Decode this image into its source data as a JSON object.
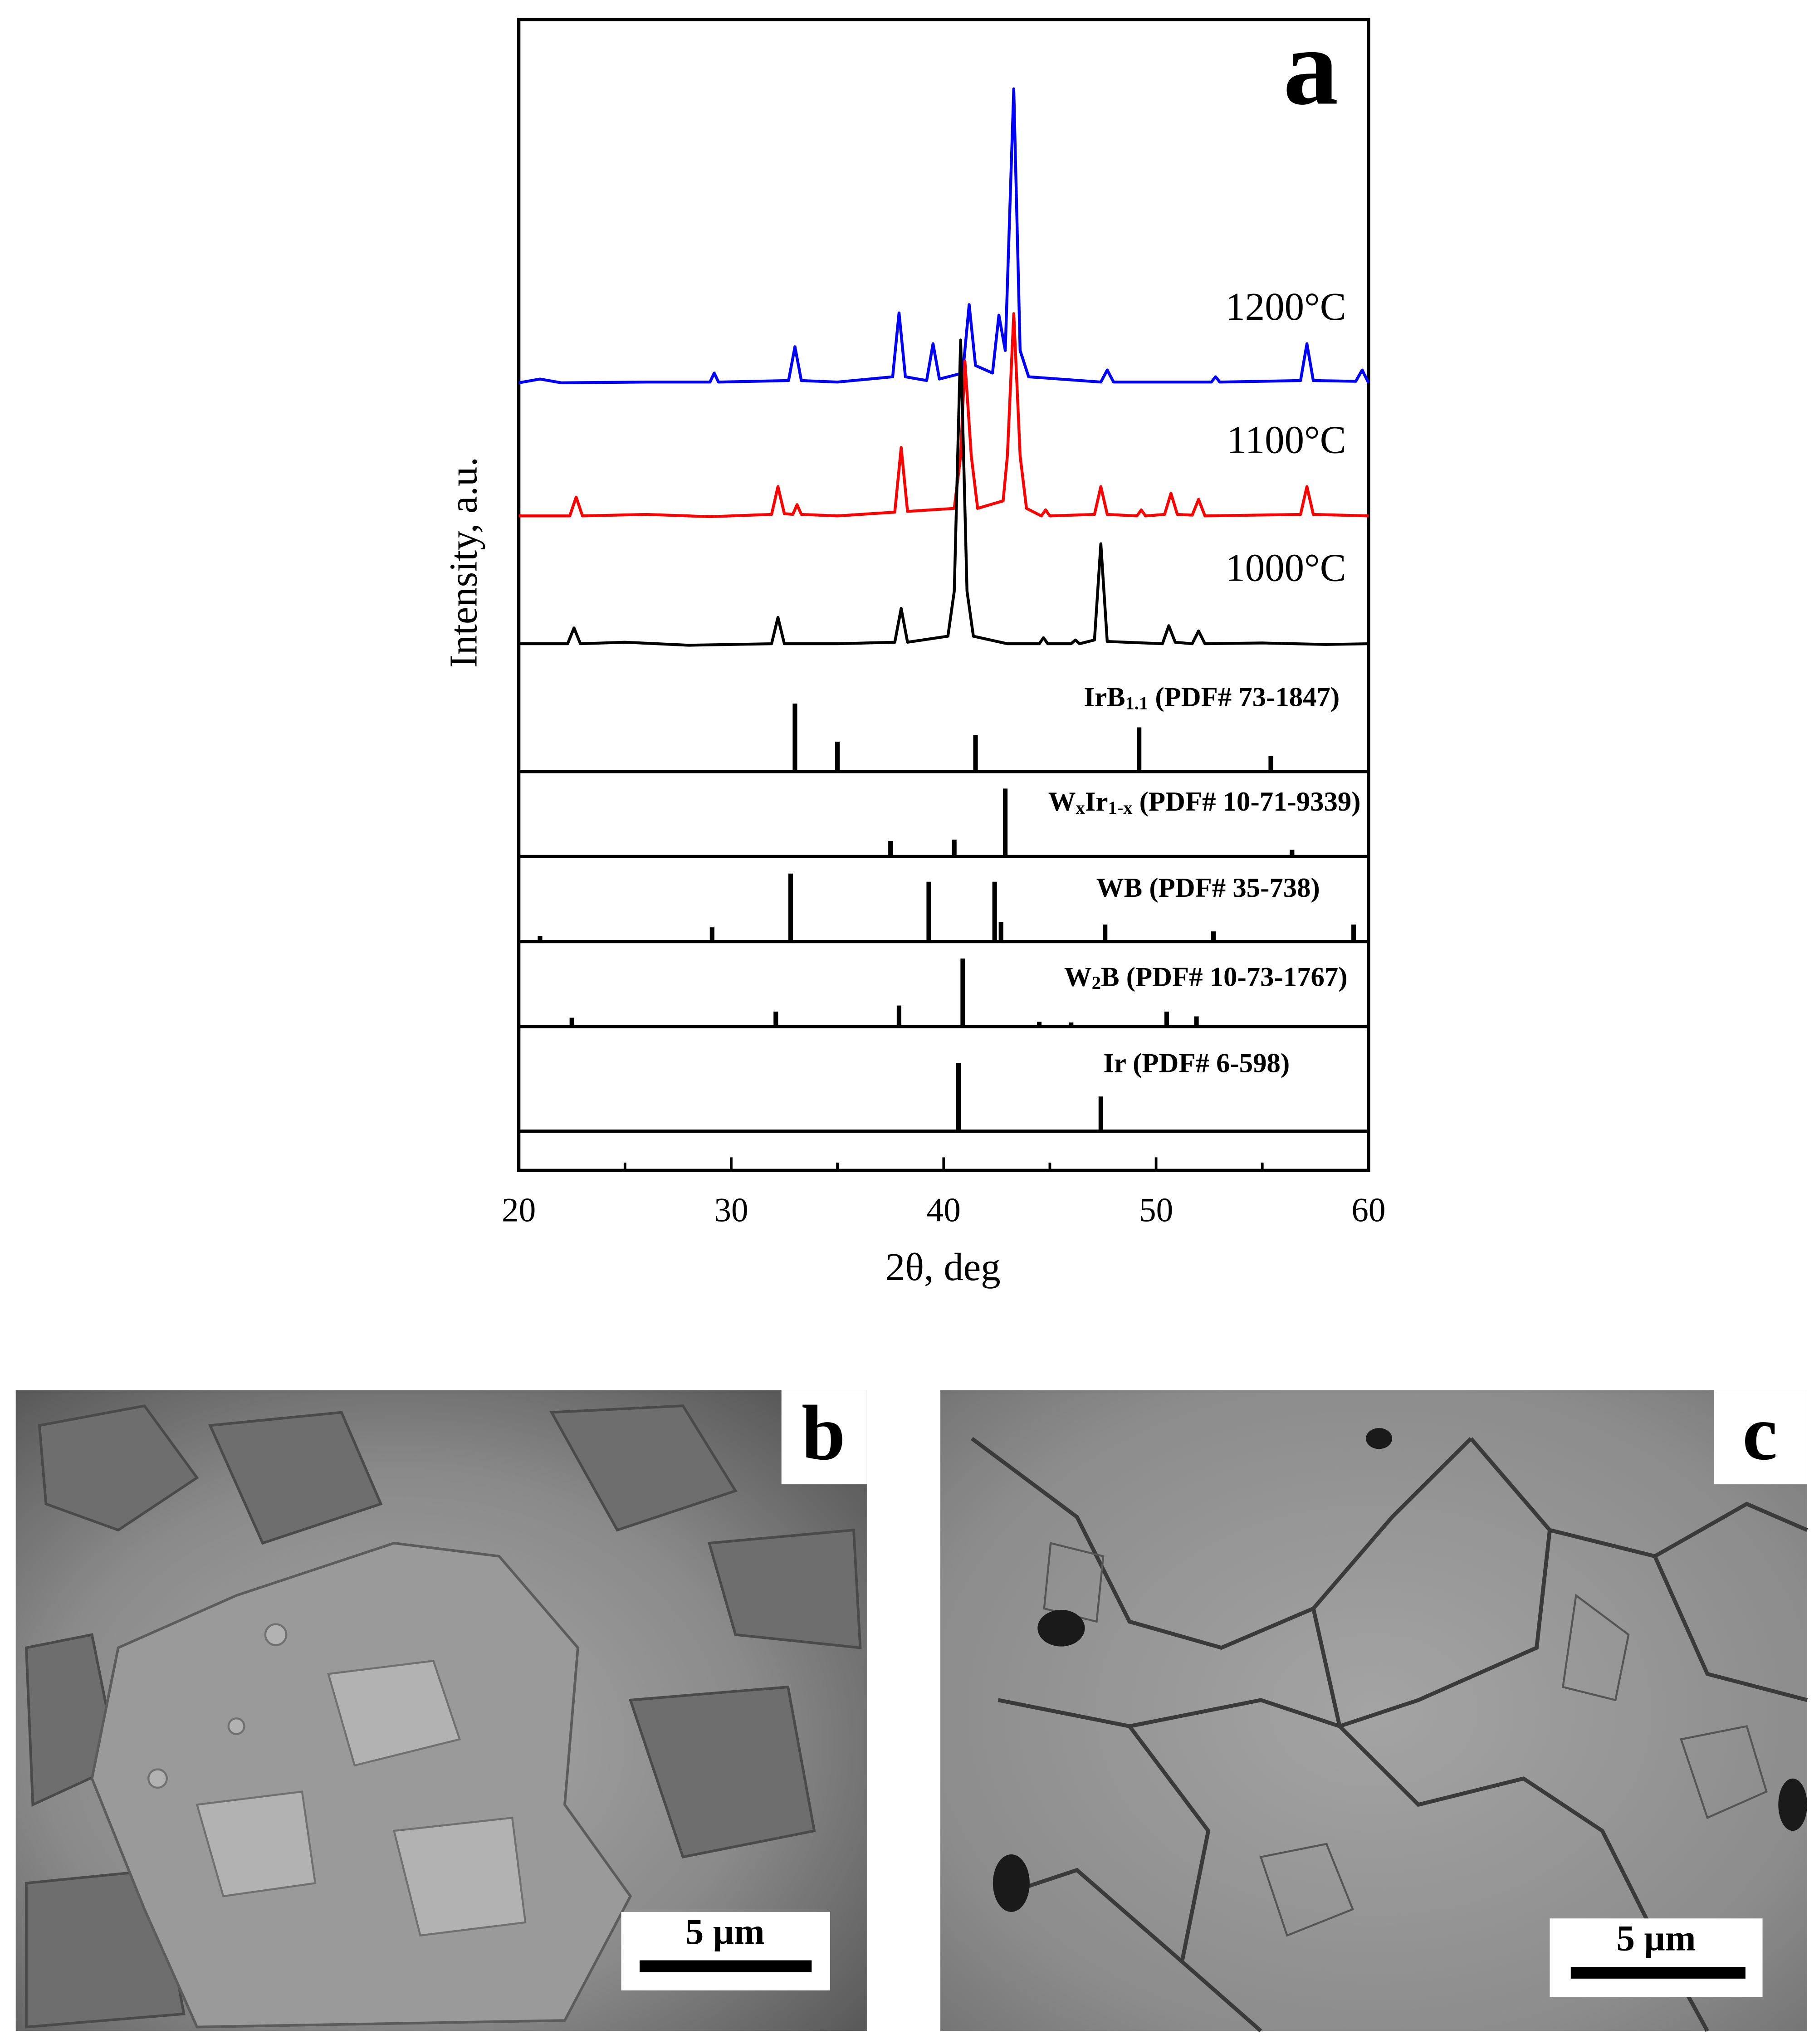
{
  "chart_data": {
    "type": "line",
    "panel_label": "a",
    "xlabel": "2θ, deg",
    "ylabel": "Intensity, a.u.",
    "xlim": [
      20,
      60
    ],
    "xticks": [
      20,
      30,
      40,
      50,
      60
    ],
    "xminor": [
      25,
      35,
      45,
      55
    ],
    "ylim": [
      0,
      100
    ],
    "series": [
      {
        "name": "1200°C",
        "color": "#0000ff",
        "x": [
          20,
          21.0,
          22,
          26,
          29.0,
          29.2,
          29.4,
          32.7,
          33.0,
          33.3,
          35,
          37.6,
          37.9,
          38.2,
          39.2,
          39.5,
          39.8,
          40.9,
          41.2,
          41.5,
          42.3,
          42.6,
          42.9,
          43.3,
          43.6,
          44.0,
          47.4,
          47.7,
          48.0,
          52.6,
          52.8,
          53.0,
          56.8,
          57.1,
          57.4,
          59.4,
          59.7,
          60
        ],
        "values": [
          51.7,
          52.2,
          51.7,
          51.8,
          51.8,
          53.0,
          51.8,
          52,
          56.5,
          52,
          51.8,
          52.5,
          61,
          52.5,
          52,
          56.9,
          52.2,
          53,
          62.1,
          54,
          53,
          60.7,
          56,
          90.8,
          56,
          52.5,
          51.8,
          53.4,
          51.8,
          51.8,
          52.5,
          51.8,
          52,
          56.9,
          52,
          51.9,
          53.4,
          51.7
        ]
      },
      {
        "name": "1100°C",
        "color": "#ff0000",
        "x": [
          20,
          22.4,
          22.7,
          23.0,
          26,
          29,
          31.9,
          32.2,
          32.5,
          32.9,
          33.1,
          33.3,
          35,
          37.7,
          38.0,
          38.3,
          40.5,
          40.8,
          41.0,
          41.3,
          41.6,
          42.8,
          43.0,
          43.3,
          43.6,
          43.9,
          44.6,
          44.8,
          45.0,
          47.1,
          47.4,
          47.7,
          49.1,
          49.3,
          49.5,
          50.4,
          50.7,
          51.0,
          51.7,
          52.0,
          52.3,
          56.8,
          57.1,
          57.4,
          60
        ],
        "values": [
          34,
          34,
          36.5,
          34,
          34.2,
          33.9,
          34.2,
          37.9,
          34.3,
          34.2,
          35.5,
          34.2,
          34,
          34.5,
          43.1,
          34.6,
          35,
          42,
          54.6,
          42,
          35,
          36,
          42,
          60.9,
          42,
          35,
          34,
          34.8,
          34,
          34.2,
          37.9,
          34.2,
          34,
          34.8,
          34,
          34.2,
          37,
          34.2,
          34.1,
          36.2,
          34,
          34.2,
          37.9,
          34.2,
          34
        ]
      },
      {
        "name": "1000°C",
        "color": "#000000",
        "x": [
          20,
          22.3,
          22.6,
          22.9,
          25,
          28,
          31.9,
          32.2,
          32.5,
          35,
          37.7,
          38.0,
          38.3,
          40.2,
          40.5,
          40.8,
          41.1,
          41.4,
          43,
          44.5,
          44.7,
          44.9,
          46.0,
          46.2,
          46.4,
          47.1,
          47.4,
          47.7,
          50.3,
          50.6,
          50.9,
          51.7,
          52.0,
          52.3,
          55,
          58,
          60
        ],
        "values": [
          17,
          17,
          19.1,
          17,
          17.2,
          16.8,
          17,
          20.5,
          17,
          17,
          17.2,
          21.7,
          17.2,
          18,
          24,
          57.4,
          24,
          18,
          17,
          17,
          17.8,
          17,
          17,
          17.5,
          17,
          17.5,
          30.3,
          17.3,
          17,
          19.4,
          17.2,
          17,
          18.7,
          17,
          17.1,
          16.9,
          17
        ]
      }
    ],
    "references": [
      {
        "label": [
          {
            "text": "IrB"
          },
          {
            "text": "1.1",
            "sub": true
          },
          {
            "text": " (PDF# 73-1847)"
          }
        ],
        "x": [
          33.0,
          35.0,
          41.5,
          49.2,
          55.4
        ],
        "intensities": [
          100,
          44,
          54,
          65,
          23
        ]
      },
      {
        "label": [
          {
            "text": "W"
          },
          {
            "text": "x",
            "sub": true
          },
          {
            "text": "Ir"
          },
          {
            "text": "1-x",
            "sub": true
          },
          {
            "text": " (PDF# 10-71-9339)"
          }
        ],
        "x": [
          37.5,
          40.5,
          42.9,
          56.4
        ],
        "intensities": [
          23,
          25,
          100,
          10
        ]
      },
      {
        "label": [
          {
            "text": "WB (PDF# 35-738)"
          }
        ],
        "x": [
          21.0,
          29.1,
          32.8,
          39.3,
          42.4,
          42.7,
          47.6,
          52.7,
          59.3
        ],
        "intensities": [
          8,
          21,
          100,
          88,
          88,
          29,
          25,
          15,
          25
        ]
      },
      {
        "label": [
          {
            "text": "W"
          },
          {
            "text": "2",
            "sub": true
          },
          {
            "text": "B (PDF# 10-73-1767)"
          }
        ],
        "x": [
          22.5,
          32.1,
          37.9,
          40.9,
          44.5,
          46.0,
          50.5,
          51.9
        ],
        "intensities": [
          13,
          22,
          31,
          100,
          7,
          6,
          22,
          15
        ]
      },
      {
        "label": [
          {
            "text": "Ir (PDF# 6-598)"
          }
        ],
        "x": [
          40.7,
          47.4
        ],
        "intensities": [
          100,
          51
        ]
      }
    ]
  },
  "images": [
    {
      "panel_label": "b",
      "scale_bar": "5 µm"
    },
    {
      "panel_label": "c",
      "scale_bar": "5 µm"
    }
  ]
}
